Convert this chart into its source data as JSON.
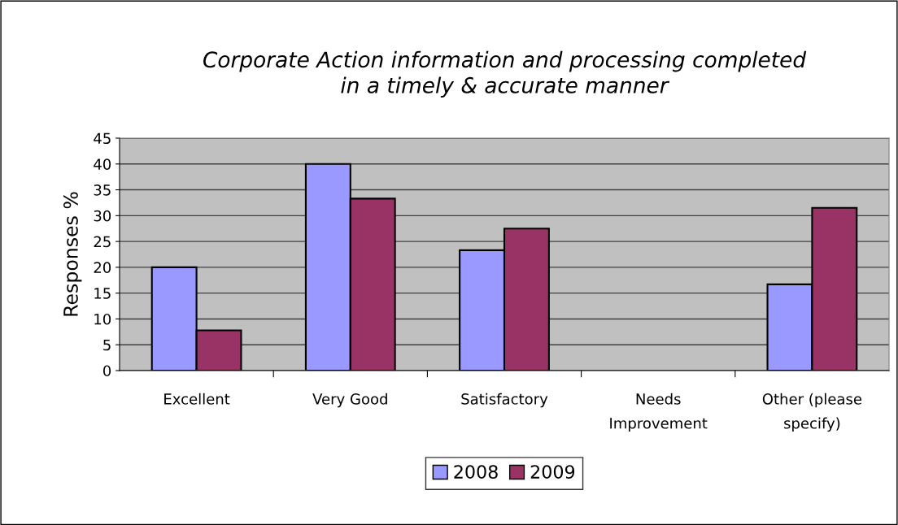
{
  "chart_data": {
    "type": "bar",
    "title": "Corporate Action information and processing completed\nin a timely & accurate manner",
    "ylabel": "Responses %",
    "categories": [
      "Excellent",
      "Very Good",
      "Satisfactory",
      "Needs\nImprovement",
      "Other (please\nspecify)"
    ],
    "series": [
      {
        "name": "2008",
        "color": "#9999ff",
        "values": [
          20,
          40,
          23.3,
          0,
          16.7
        ]
      },
      {
        "name": "2009",
        "color": "#993366",
        "values": [
          7.8,
          33.3,
          27.5,
          0,
          31.5
        ]
      }
    ],
    "ylim": [
      0,
      45
    ],
    "yticks": [
      0,
      5,
      10,
      15,
      20,
      25,
      30,
      35,
      40,
      45
    ],
    "grid": "y",
    "legend": "bottom"
  }
}
